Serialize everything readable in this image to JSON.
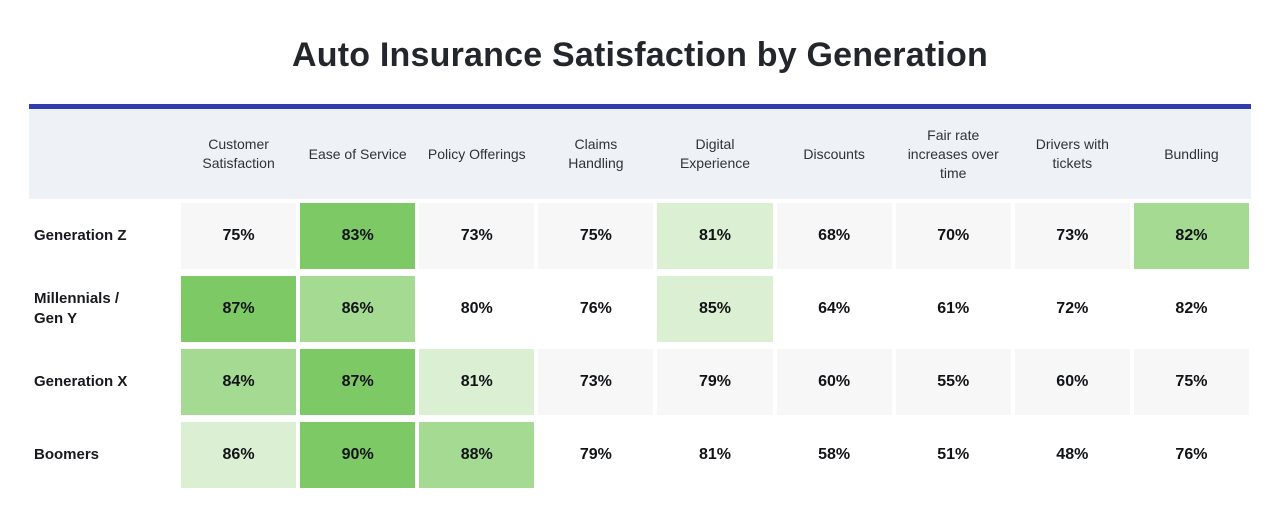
{
  "title": "Auto Insurance Satisfaction by Generation",
  "colors": {
    "title-color": "#23262b",
    "accent": "#2f3db0",
    "header-bg": "#eef2f6",
    "cell-gray": "#f7f7f7",
    "green-dark": "#7cc965",
    "green-medium": "#a5da93",
    "green-light": "#dbf0d3"
  },
  "table": {
    "columns": [
      "Customer Satisfaction",
      "Ease of Service",
      "Policy Offerings",
      "Claims Handling",
      "Digital Experience",
      "Discounts",
      "Fair rate increases over time",
      "Drivers with tickets",
      "Bundling"
    ],
    "rows": [
      {
        "label": "Generation Z",
        "values": [
          "75%",
          "83%",
          "73%",
          "75%",
          "81%",
          "68%",
          "70%",
          "73%",
          "82%"
        ],
        "highlights": [
          null,
          "dark",
          null,
          null,
          "light",
          null,
          null,
          null,
          "medium"
        ]
      },
      {
        "label": "Millennials / Gen Y",
        "values": [
          "87%",
          "86%",
          "80%",
          "76%",
          "85%",
          "64%",
          "61%",
          "72%",
          "82%"
        ],
        "highlights": [
          "dark",
          "medium",
          null,
          null,
          "light",
          null,
          null,
          null,
          null
        ]
      },
      {
        "label": "Generation X",
        "values": [
          "84%",
          "87%",
          "81%",
          "73%",
          "79%",
          "60%",
          "55%",
          "60%",
          "75%"
        ],
        "highlights": [
          "medium",
          "dark",
          "light",
          null,
          null,
          null,
          null,
          null,
          null
        ]
      },
      {
        "label": "Boomers",
        "values": [
          "86%",
          "90%",
          "88%",
          "79%",
          "81%",
          "58%",
          "51%",
          "48%",
          "76%"
        ],
        "highlights": [
          "light",
          "dark",
          "medium",
          null,
          null,
          null,
          null,
          null,
          null
        ]
      }
    ]
  },
  "chart_data": {
    "type": "heatmap",
    "title": "Auto Insurance Satisfaction by Generation",
    "columns": [
      "Customer Satisfaction",
      "Ease of Service",
      "Policy Offerings",
      "Claims Handling",
      "Digital Experience",
      "Discounts",
      "Fair rate increases over time",
      "Drivers with tickets",
      "Bundling"
    ],
    "rows": [
      "Generation Z",
      "Millennials / Gen Y",
      "Generation X",
      "Boomers"
    ],
    "values_pct": [
      [
        75,
        83,
        73,
        75,
        81,
        68,
        70,
        73,
        82
      ],
      [
        87,
        86,
        80,
        76,
        85,
        64,
        61,
        72,
        82
      ],
      [
        84,
        87,
        81,
        73,
        79,
        60,
        55,
        60,
        75
      ],
      [
        86,
        90,
        88,
        79,
        81,
        58,
        51,
        48,
        76
      ]
    ],
    "value_range": [
      48,
      90
    ],
    "shading": "top three values in each row shaded green; darker green = higher value within the row"
  }
}
